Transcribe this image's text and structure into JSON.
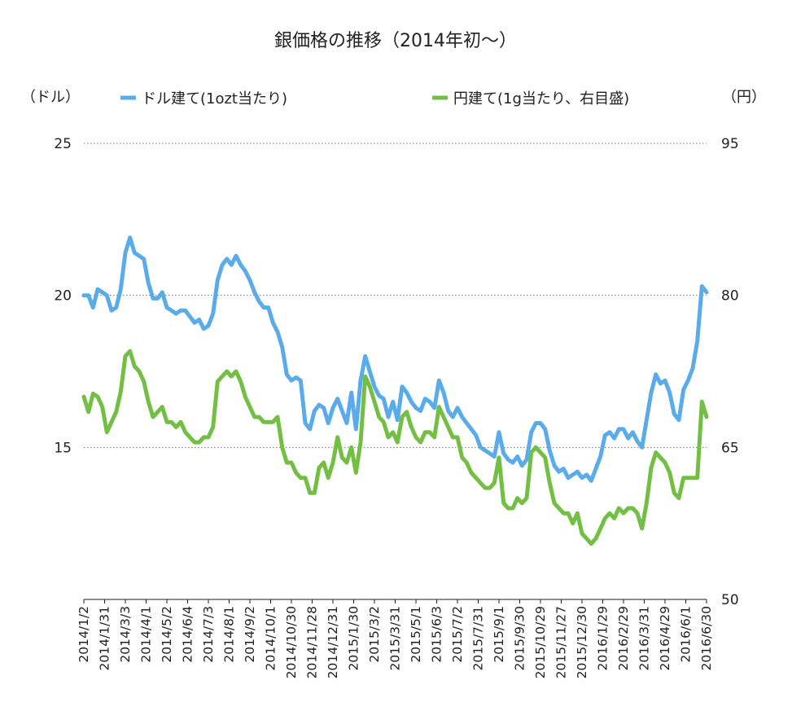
{
  "chart_data": {
    "type": "line",
    "title": "銀価格の推移（2014年初〜）",
    "left_unit": "（ドル）",
    "right_unit": "（円）",
    "y_left": {
      "min": 10,
      "max": 25,
      "ticks": [
        15,
        20,
        25
      ]
    },
    "y_right": {
      "min": 50,
      "max": 95,
      "ticks": [
        50,
        65,
        80,
        95
      ]
    },
    "grid": "dotted-horizontal",
    "legend_position": "top",
    "x_labels": [
      "2014/1/2",
      "2014/1/31",
      "2014/3/3",
      "2014/4/1",
      "2014/5/2",
      "2014/6/4",
      "2014/7/3",
      "2014/8/1",
      "2014/9/2",
      "2014/10/1",
      "2014/10/30",
      "2014/11/28",
      "2014/12/31",
      "2015/1/30",
      "2015/3/2",
      "2015/3/31",
      "2015/5/1",
      "2015/6/3",
      "2015/7/2",
      "2015/7/31",
      "2015/9/1",
      "2015/9/30",
      "2015/10/29",
      "2015/11/27",
      "2015/12/30",
      "2016/1/29",
      "2016/2/29",
      "2016/3/31",
      "2016/4/29",
      "2016/6/1",
      "2016/6/30"
    ],
    "series": [
      {
        "name": "ドル建て(1ozt当たり)",
        "axis": "left",
        "color": "#5aabea",
        "values": [
          20.0,
          20.0,
          19.6,
          20.2,
          20.1,
          20.0,
          19.5,
          19.6,
          20.2,
          21.4,
          21.9,
          21.4,
          21.3,
          21.2,
          20.4,
          19.9,
          19.9,
          20.1,
          19.6,
          19.5,
          19.4,
          19.5,
          19.5,
          19.3,
          19.1,
          19.2,
          18.9,
          19.0,
          19.4,
          20.5,
          21.0,
          21.2,
          21.0,
          21.3,
          21.0,
          20.8,
          20.5,
          20.1,
          19.8,
          19.6,
          19.6,
          19.1,
          18.8,
          18.3,
          17.4,
          17.2,
          17.3,
          17.2,
          15.8,
          15.6,
          16.2,
          16.4,
          16.3,
          15.8,
          16.3,
          16.6,
          16.2,
          15.8,
          16.8,
          15.6,
          17.2,
          18.0,
          17.5,
          17.0,
          16.7,
          16.6,
          16.0,
          16.5,
          15.9,
          17.0,
          16.8,
          16.5,
          16.3,
          16.2,
          16.6,
          16.5,
          16.3,
          17.2,
          16.8,
          16.2,
          16.0,
          16.3,
          16.0,
          15.8,
          15.6,
          15.4,
          15.0,
          14.9,
          14.8,
          14.7,
          15.5,
          14.8,
          14.6,
          14.5,
          14.7,
          14.4,
          14.6,
          15.5,
          15.8,
          15.8,
          15.6,
          14.9,
          14.4,
          14.2,
          14.3,
          14.0,
          14.1,
          14.2,
          14.0,
          14.1,
          13.9,
          14.3,
          14.7,
          15.4,
          15.5,
          15.3,
          15.6,
          15.6,
          15.3,
          15.5,
          15.2,
          15.0,
          15.9,
          16.8,
          17.4,
          17.1,
          17.2,
          16.8,
          16.1,
          15.9,
          16.9,
          17.2,
          17.6,
          18.5,
          20.3,
          20.1
        ]
      },
      {
        "name": "円建て(1g当たり、右目盛)",
        "axis": "right",
        "color": "#72bf44",
        "values": [
          70.0,
          68.5,
          70.3,
          70.0,
          69.0,
          66.5,
          67.5,
          68.5,
          70.5,
          74.0,
          74.5,
          73.0,
          72.5,
          71.5,
          69.5,
          68.0,
          68.5,
          69.0,
          67.5,
          67.5,
          67.0,
          67.5,
          66.5,
          66.0,
          65.5,
          65.5,
          66.0,
          66.0,
          67.0,
          71.5,
          72.0,
          72.5,
          72.0,
          72.5,
          71.5,
          70.0,
          69.0,
          68.0,
          68.0,
          67.5,
          67.5,
          67.5,
          68.0,
          65.0,
          63.5,
          63.5,
          62.5,
          62.0,
          62.0,
          60.5,
          60.5,
          63.0,
          63.5,
          62.0,
          63.5,
          66.0,
          64.0,
          63.5,
          65.0,
          62.5,
          65.5,
          72.0,
          71.0,
          69.5,
          68.0,
          67.5,
          66.0,
          66.5,
          65.5,
          68.0,
          68.5,
          67.0,
          66.0,
          65.5,
          66.5,
          66.5,
          66.0,
          69.0,
          68.0,
          67.0,
          66.0,
          66.0,
          64.0,
          63.5,
          62.5,
          62.0,
          61.5,
          61.0,
          61.0,
          61.5,
          64.0,
          59.5,
          59.0,
          59.0,
          60.0,
          59.5,
          60.0,
          64.5,
          65.0,
          64.5,
          64.0,
          61.5,
          59.5,
          59.0,
          58.5,
          58.5,
          57.5,
          58.5,
          56.5,
          56.0,
          55.5,
          56.0,
          57.0,
          58.0,
          58.5,
          58.0,
          59.0,
          58.5,
          59.0,
          59.0,
          58.5,
          57.0,
          59.5,
          63.0,
          64.5,
          64.0,
          63.5,
          62.5,
          60.5,
          60.0,
          62.0,
          62.0,
          62.0,
          62.0,
          69.5,
          68.0
        ]
      }
    ]
  }
}
